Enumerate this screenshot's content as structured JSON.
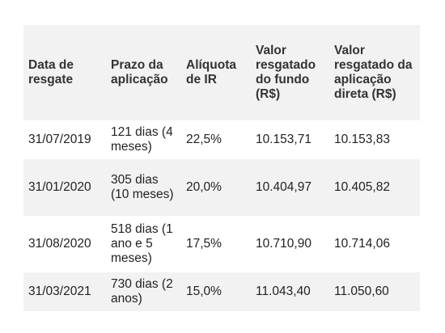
{
  "table": {
    "headers": [
      "Data de resgate",
      "Prazo da aplicação",
      "Alíquota de IR",
      "Valor resgatado do fundo (R$)",
      "Valor resgatado da aplicação direta (R$)"
    ],
    "rows": [
      [
        "31/07/2019",
        "121 dias (4 meses)",
        "22,5%",
        "10.153,71",
        "10.153,83"
      ],
      [
        "31/01/2020",
        "305 dias (10 meses)",
        "20,0%",
        "10.404,97",
        "10.405,82"
      ],
      [
        "31/08/2020",
        "518 dias (1 ano e 5 meses)",
        "17,5%",
        "10.710,90",
        "10.714,06"
      ],
      [
        "31/03/2021",
        "730 dias (2 anos)",
        "15,0%",
        "11.043,40",
        "11.050,60"
      ]
    ]
  }
}
